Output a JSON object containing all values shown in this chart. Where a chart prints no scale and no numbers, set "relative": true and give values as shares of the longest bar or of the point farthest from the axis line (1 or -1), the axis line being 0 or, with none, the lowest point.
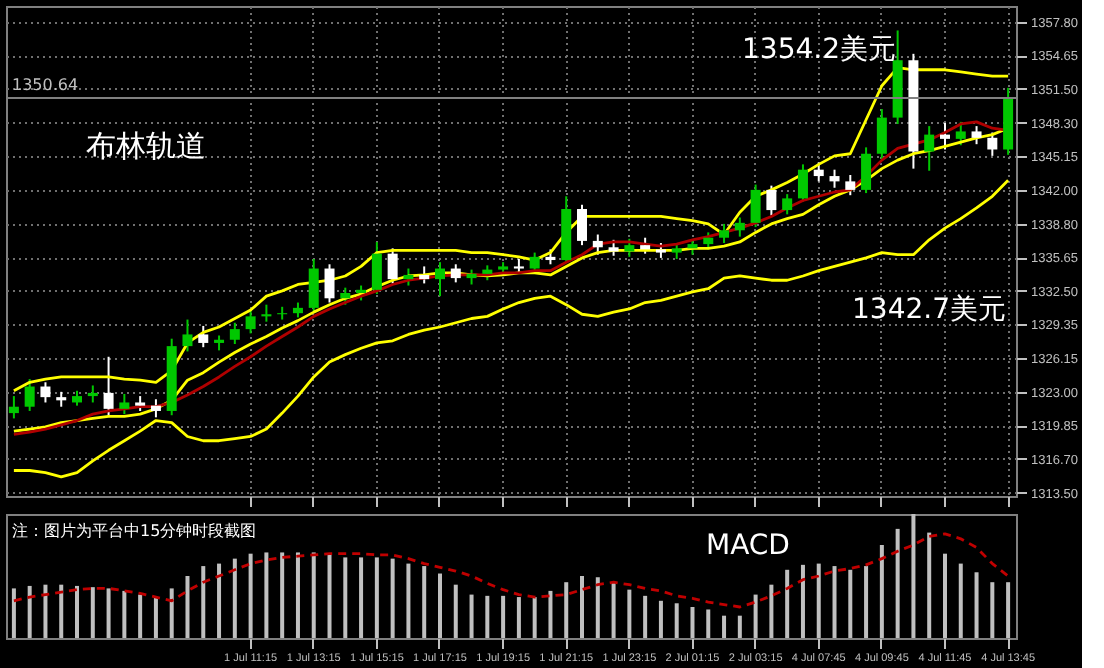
{
  "chart_data": [
    {
      "type": "candlestick",
      "ohlc": [
        [
          1321.0,
          1322.6,
          1320.5,
          1321.6
        ],
        [
          1321.6,
          1324.2,
          1321.2,
          1323.5
        ],
        [
          1323.5,
          1323.9,
          1322.0,
          1322.5
        ],
        [
          1322.5,
          1323.0,
          1321.6,
          1322.2
        ],
        [
          1322.0,
          1323.1,
          1321.7,
          1322.6
        ],
        [
          1322.6,
          1323.6,
          1322.0,
          1322.9
        ],
        [
          1322.9,
          1326.3,
          1320.7,
          1321.4
        ],
        [
          1321.4,
          1322.8,
          1320.9,
          1322.0
        ],
        [
          1322.0,
          1322.6,
          1321.2,
          1321.7
        ],
        [
          1321.7,
          1322.3,
          1320.6,
          1321.2
        ],
        [
          1321.2,
          1328.0,
          1320.8,
          1327.3
        ],
        [
          1327.3,
          1329.8,
          1326.8,
          1328.4
        ],
        [
          1328.4,
          1329.2,
          1327.2,
          1327.6
        ],
        [
          1327.6,
          1328.3,
          1326.9,
          1327.9
        ],
        [
          1327.9,
          1329.5,
          1327.5,
          1328.9
        ],
        [
          1328.9,
          1330.8,
          1328.5,
          1330.1
        ],
        [
          1330.1,
          1331.2,
          1329.6,
          1330.3
        ],
        [
          1330.3,
          1331.0,
          1329.8,
          1330.4
        ],
        [
          1330.4,
          1331.4,
          1330.0,
          1330.9
        ],
        [
          1330.9,
          1335.5,
          1330.6,
          1334.6
        ],
        [
          1334.6,
          1335.0,
          1331.4,
          1331.8
        ],
        [
          1331.8,
          1332.8,
          1331.2,
          1332.3
        ],
        [
          1332.3,
          1333.0,
          1331.6,
          1332.6
        ],
        [
          1332.6,
          1337.1,
          1332.2,
          1336.0
        ],
        [
          1336.0,
          1336.5,
          1333.2,
          1333.6
        ],
        [
          1333.6,
          1334.6,
          1333.0,
          1334.0
        ],
        [
          1334.0,
          1334.8,
          1333.2,
          1333.6
        ],
        [
          1333.6,
          1335.2,
          1332.0,
          1334.6
        ],
        [
          1334.6,
          1335.0,
          1333.3,
          1333.7
        ],
        [
          1333.7,
          1334.5,
          1333.1,
          1334.1
        ],
        [
          1334.1,
          1334.9,
          1333.5,
          1334.5
        ],
        [
          1334.5,
          1335.2,
          1334.0,
          1334.8
        ],
        [
          1334.8,
          1335.5,
          1334.1,
          1334.6
        ],
        [
          1334.6,
          1336.1,
          1334.3,
          1335.7
        ],
        [
          1335.7,
          1336.4,
          1335.0,
          1335.4
        ],
        [
          1335.4,
          1341.4,
          1335.2,
          1340.2
        ],
        [
          1340.2,
          1340.6,
          1336.8,
          1337.2
        ],
        [
          1337.2,
          1337.8,
          1335.9,
          1336.6
        ],
        [
          1336.6,
          1337.3,
          1335.8,
          1336.2
        ],
        [
          1336.2,
          1337.4,
          1335.7,
          1336.8
        ],
        [
          1336.8,
          1337.5,
          1336.0,
          1336.4
        ],
        [
          1336.4,
          1337.0,
          1335.6,
          1336.1
        ],
        [
          1336.1,
          1336.9,
          1335.5,
          1336.5
        ],
        [
          1336.5,
          1337.2,
          1335.9,
          1336.9
        ],
        [
          1336.9,
          1338.0,
          1336.4,
          1337.5
        ],
        [
          1337.5,
          1338.8,
          1337.0,
          1338.2
        ],
        [
          1338.2,
          1339.4,
          1337.6,
          1338.9
        ],
        [
          1338.9,
          1342.5,
          1338.5,
          1342.0
        ],
        [
          1342.0,
          1342.4,
          1339.6,
          1340.1
        ],
        [
          1340.1,
          1341.6,
          1339.7,
          1341.2
        ],
        [
          1341.2,
          1344.4,
          1340.9,
          1343.9
        ],
        [
          1343.9,
          1344.6,
          1342.8,
          1343.3
        ],
        [
          1343.3,
          1343.9,
          1342.2,
          1342.8
        ],
        [
          1342.8,
          1343.4,
          1341.5,
          1342.0
        ],
        [
          1342.0,
          1346.0,
          1341.7,
          1345.4
        ],
        [
          1345.4,
          1349.6,
          1344.9,
          1348.8
        ],
        [
          1348.8,
          1357.0,
          1348.2,
          1354.2
        ],
        [
          1354.2,
          1354.8,
          1344.0,
          1345.6
        ],
        [
          1345.6,
          1348.0,
          1343.8,
          1347.2
        ],
        [
          1347.2,
          1348.3,
          1345.8,
          1346.8
        ],
        [
          1346.8,
          1348.4,
          1346.2,
          1347.5
        ],
        [
          1347.5,
          1348.0,
          1346.3,
          1346.9
        ],
        [
          1346.9,
          1347.4,
          1345.2,
          1345.8
        ],
        [
          1345.8,
          1351.6,
          1345.3,
          1350.6
        ]
      ],
      "colors": [
        "#00c800",
        "#00c800",
        "#ffffff",
        "#ffffff",
        "#00c800",
        "#00c800",
        "#ffffff",
        "#00c800",
        "#ffffff",
        "#ffffff",
        "#00c800",
        "#00c800",
        "#ffffff",
        "#00c800",
        "#00c800",
        "#00c800",
        "#00c800",
        "#00c800",
        "#00c800",
        "#00c800",
        "#ffffff",
        "#00c800",
        "#00c800",
        "#00c800",
        "#ffffff",
        "#00c800",
        "#ffffff",
        "#00c800",
        "#ffffff",
        "#00c800",
        "#00c800",
        "#00c800",
        "#ffffff",
        "#00c800",
        "#ffffff",
        "#00c800",
        "#ffffff",
        "#ffffff",
        "#ffffff",
        "#00c800",
        "#ffffff",
        "#ffffff",
        "#00c800",
        "#00c800",
        "#00c800",
        "#00c800",
        "#00c800",
        "#00c800",
        "#ffffff",
        "#00c800",
        "#00c800",
        "#ffffff",
        "#ffffff",
        "#ffffff",
        "#00c800",
        "#00c800",
        "#00c800",
        "#ffffff",
        "#00c800",
        "#ffffff",
        "#00c800",
        "#ffffff",
        "#ffffff",
        "#00c800"
      ],
      "series": [
        {
          "type": "line",
          "color": "#ffff00",
          "values": [
            1323.1,
            1323.9,
            1324.2,
            1324.4,
            1324.4,
            1324.4,
            1324.4,
            1324.2,
            1324.1,
            1323.9,
            1325.0,
            1327.6,
            1328.6,
            1329.1,
            1329.9,
            1330.7,
            1332.0,
            1332.5,
            1333.1,
            1333.3,
            1333.5,
            1333.9,
            1334.8,
            1336.1,
            1336.3,
            1336.3,
            1336.3,
            1336.3,
            1336.3,
            1336.1,
            1336.1,
            1335.9,
            1335.7,
            1335.4,
            1336.1,
            1338.0,
            1339.5,
            1339.5,
            1339.5,
            1339.5,
            1339.5,
            1339.5,
            1339.3,
            1339.1,
            1338.8,
            1337.8,
            1339.9,
            1341.4,
            1342.0,
            1342.7,
            1343.5,
            1344.4,
            1345.2,
            1345.4,
            1348.6,
            1351.8,
            1353.5,
            1353.3,
            1353.3,
            1353.3,
            1353.1,
            1352.9,
            1352.7,
            1352.7
          ]
        },
        {
          "type": "line",
          "color": "#ffff00",
          "values": [
            1319.3,
            1319.5,
            1319.7,
            1320.1,
            1320.3,
            1320.5,
            1320.7,
            1320.7,
            1320.9,
            1321.4,
            1322.2,
            1324.1,
            1324.8,
            1325.8,
            1326.7,
            1327.5,
            1328.2,
            1329.0,
            1329.7,
            1330.5,
            1331.2,
            1331.8,
            1332.2,
            1332.9,
            1333.5,
            1333.9,
            1334.0,
            1334.2,
            1334.2,
            1334.0,
            1333.9,
            1334.0,
            1334.2,
            1334.2,
            1334.0,
            1334.8,
            1335.6,
            1336.1,
            1336.3,
            1336.3,
            1336.3,
            1336.3,
            1336.3,
            1336.5,
            1336.5,
            1336.7,
            1337.1,
            1338.0,
            1338.8,
            1339.3,
            1339.7,
            1340.6,
            1341.4,
            1342.0,
            1342.9,
            1344.0,
            1344.8,
            1345.4,
            1345.7,
            1346.1,
            1346.5,
            1346.9,
            1347.2,
            1347.8
          ]
        },
        {
          "type": "line",
          "color": "#ffff00",
          "values": [
            1315.6,
            1315.6,
            1315.4,
            1315.0,
            1315.4,
            1316.5,
            1317.5,
            1318.4,
            1319.3,
            1320.3,
            1320.1,
            1318.8,
            1318.4,
            1318.4,
            1318.6,
            1318.8,
            1319.5,
            1321.0,
            1322.6,
            1324.4,
            1325.8,
            1326.5,
            1327.1,
            1327.6,
            1327.8,
            1328.4,
            1328.8,
            1329.1,
            1329.5,
            1329.9,
            1330.1,
            1330.8,
            1331.4,
            1331.8,
            1332.0,
            1331.2,
            1330.3,
            1330.1,
            1330.5,
            1330.8,
            1331.4,
            1331.6,
            1332.0,
            1332.4,
            1332.7,
            1333.7,
            1333.9,
            1333.7,
            1333.5,
            1333.5,
            1333.9,
            1334.4,
            1334.8,
            1335.2,
            1335.6,
            1336.1,
            1335.9,
            1335.9,
            1337.3,
            1338.4,
            1339.3,
            1340.3,
            1341.4,
            1342.9
          ]
        },
        {
          "type": "line",
          "color": "#b00000",
          "values": [
            1319.0,
            1319.2,
            1319.5,
            1319.9,
            1320.3,
            1320.9,
            1321.2,
            1321.4,
            1321.6,
            1321.6,
            1322.0,
            1322.7,
            1323.5,
            1324.4,
            1325.4,
            1326.3,
            1327.3,
            1328.2,
            1329.1,
            1330.1,
            1330.8,
            1331.4,
            1332.0,
            1332.5,
            1333.1,
            1333.5,
            1333.7,
            1333.9,
            1334.0,
            1334.0,
            1334.0,
            1334.2,
            1334.2,
            1334.4,
            1334.4,
            1335.2,
            1335.9,
            1336.9,
            1337.1,
            1337.1,
            1336.9,
            1336.7,
            1336.9,
            1337.3,
            1337.6,
            1338.0,
            1338.4,
            1338.9,
            1339.5,
            1340.3,
            1341.0,
            1341.4,
            1341.8,
            1342.0,
            1343.3,
            1344.8,
            1345.9,
            1346.3,
            1346.7,
            1347.4,
            1348.2,
            1348.4,
            1347.8,
            1347.6
          ]
        }
      ],
      "ylim": [
        1313.2,
        1359.3
      ],
      "yticks": [
        {
          "value": 1357.8,
          "label": "1357.80"
        },
        {
          "value": 1354.65,
          "label": "1354.65"
        },
        {
          "value": 1351.5,
          "label": "1351.50"
        },
        {
          "value": 1348.3,
          "label": "1348.30"
        },
        {
          "value": 1345.15,
          "label": "1345.15"
        },
        {
          "value": 1342.0,
          "label": "1342.00"
        },
        {
          "value": 1338.8,
          "label": "1338.80"
        },
        {
          "value": 1335.65,
          "label": "1335.65"
        },
        {
          "value": 1332.5,
          "label": "1332.50"
        },
        {
          "value": 1329.35,
          "label": "1329.35"
        },
        {
          "value": 1326.15,
          "label": "1326.15"
        },
        {
          "value": 1323.0,
          "label": "1323.00"
        },
        {
          "value": 1319.85,
          "label": "1319.85"
        },
        {
          "value": 1316.7,
          "label": "1316.70"
        },
        {
          "value": 1313.5,
          "label": "1313.50"
        }
      ],
      "ref_lines": [
        {
          "axis": "y",
          "value": 1350.64,
          "label": "1350.64",
          "color": "#808080"
        }
      ],
      "annotations": [
        "布林轨道",
        "1354.2美元",
        "1342.7美元"
      ],
      "grid": true,
      "tick_labels": "y"
    },
    {
      "type": "bar",
      "relative": true,
      "categories": [
        null,
        null,
        null,
        null,
        null,
        null,
        null,
        null,
        null,
        null,
        null,
        null,
        null,
        null,
        null,
        "1 Jul 11:15",
        null,
        null,
        null,
        "1 Jul 13:15",
        null,
        null,
        null,
        "1 Jul 15:15",
        null,
        null,
        null,
        "1 Jul 17:15",
        null,
        null,
        null,
        "1 Jul 19:15",
        null,
        null,
        null,
        "1 Jul 21:15",
        null,
        null,
        null,
        "1 Jul 23:15",
        null,
        null,
        null,
        "2 Jul 01:15",
        null,
        null,
        null,
        "2 Jul 03:15",
        null,
        null,
        null,
        "4 Jul 07:45",
        null,
        null,
        null,
        "4 Jul 09:45",
        null,
        null,
        null,
        "4 Jul 11:45",
        null,
        null,
        null,
        "4 Jul 13:45"
      ],
      "series": [
        {
          "type": "bar",
          "color": "#c0c0c0",
          "values": [
            0.4,
            0.42,
            0.43,
            0.43,
            0.42,
            0.41,
            0.4,
            0.38,
            0.35,
            0.33,
            0.4,
            0.5,
            0.58,
            0.6,
            0.64,
            0.68,
            0.69,
            0.69,
            0.69,
            0.69,
            0.68,
            0.65,
            0.65,
            0.65,
            0.64,
            0.6,
            0.58,
            0.52,
            0.43,
            0.35,
            0.34,
            0.34,
            0.33,
            0.33,
            0.38,
            0.45,
            0.5,
            0.49,
            0.45,
            0.39,
            0.34,
            0.3,
            0.28,
            0.25,
            0.23,
            0.18,
            0.18,
            0.35,
            0.43,
            0.55,
            0.59,
            0.6,
            0.58,
            0.55,
            0.58,
            0.75,
            0.88,
            1,
            0.85,
            0.68,
            0.6,
            0.53,
            0.45,
            0.45
          ]
        },
        {
          "type": "line",
          "color": "#c00000",
          "line_style": "dashed",
          "values": [
            0.3,
            0.33,
            0.35,
            0.37,
            0.39,
            0.4,
            0.4,
            0.38,
            0.36,
            0.33,
            0.3,
            0.38,
            0.45,
            0.5,
            0.55,
            0.6,
            0.63,
            0.65,
            0.66,
            0.67,
            0.68,
            0.68,
            0.68,
            0.67,
            0.67,
            0.64,
            0.6,
            0.57,
            0.54,
            0.5,
            0.44,
            0.39,
            0.35,
            0.33,
            0.34,
            0.35,
            0.39,
            0.43,
            0.45,
            0.43,
            0.4,
            0.38,
            0.34,
            0.32,
            0.29,
            0.27,
            0.25,
            0.29,
            0.34,
            0.4,
            0.47,
            0.5,
            0.54,
            0.56,
            0.59,
            0.64,
            0.7,
            0.75,
            0.82,
            0.84,
            0.8,
            0.73,
            0.6,
            0.5
          ]
        }
      ],
      "annotations": [
        "MACD",
        "注：图片为平台中15分钟时段截图"
      ],
      "tick_labels": "x"
    }
  ]
}
